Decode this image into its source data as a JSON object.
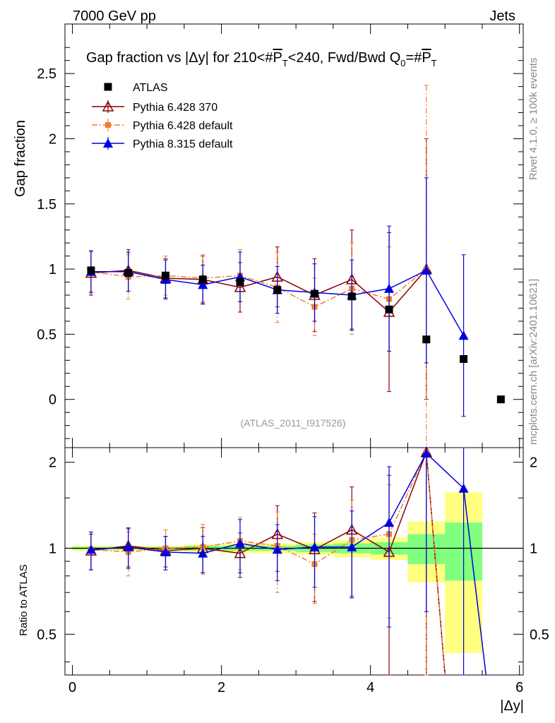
{
  "header": {
    "left": "7000 GeV pp",
    "right": "Jets",
    "title_pre": "Gap fraction vs |",
    "title_delta": "Δy| for 210<#",
    "title_pt1": "P",
    "title_t1": "T",
    "title_mid": "<240, Fwd/Bwd Q",
    "title_q0": "0",
    "title_eq": "=#",
    "title_pt2": "P",
    "title_t2": "T"
  },
  "side": {
    "rivet": "Rivet 4.1.0, ≥ 100k events",
    "mcplots": "mcplots.cern.ch [arXiv:2401.10621]"
  },
  "watermark": "(ATLAS_2011_I917526)",
  "colors": {
    "atlas": "#000000",
    "py6_370": "#8b0000",
    "py6_def": "#ef7d35",
    "py8_def": "#0000dd",
    "band_inner": "#80ff80",
    "band_outer": "#ffff80"
  },
  "chart_data": [
    {
      "type": "scatter",
      "title": "Gap fraction vs |Δy| for 210<#PT<240, Fwd/Bwd Q0=#PT",
      "xlabel": "|Δy|",
      "ylabel": "Gap fraction",
      "xlim": [
        -0.1,
        6.05
      ],
      "ylim": [
        -0.37,
        2.88
      ],
      "yticks": [
        0,
        0.5,
        1,
        1.5,
        2,
        2.5
      ],
      "ytick_labels": [
        "0",
        "0.5",
        "1",
        "1.5",
        "2",
        "2.5"
      ],
      "legend_position": "top-left",
      "series": [
        {
          "name": "ATLAS",
          "key": "atlas",
          "marker": "square",
          "line": "none",
          "x": [
            0.25,
            0.75,
            1.25,
            1.75,
            2.25,
            2.75,
            3.25,
            3.75,
            4.25,
            4.75,
            5.25,
            5.75
          ],
          "y": [
            0.99,
            0.97,
            0.95,
            0.92,
            0.9,
            0.84,
            0.81,
            0.79,
            0.69,
            0.46,
            0.31,
            0.0
          ],
          "err": [
            0,
            0,
            0,
            0,
            0,
            0,
            0,
            0,
            0,
            0,
            0,
            0
          ]
        },
        {
          "name": "Pythia 6.428 370",
          "key": "py6_370",
          "marker": "open-triangle",
          "line": "solid",
          "x": [
            0.25,
            0.75,
            1.25,
            1.75,
            2.25,
            2.75,
            3.25,
            3.75,
            4.25,
            4.75
          ],
          "y": [
            0.97,
            0.99,
            0.93,
            0.92,
            0.86,
            0.94,
            0.8,
            0.92,
            0.67,
            1.0
          ],
          "err": [
            0.17,
            0.16,
            0.15,
            0.18,
            0.19,
            0.23,
            0.28,
            0.38,
            0.61,
            1.0
          ]
        },
        {
          "name": "Pythia 6.428 default",
          "key": "py6_def",
          "marker": "square",
          "line": "dashdot",
          "x": [
            0.25,
            0.75,
            1.25,
            1.75,
            2.25,
            2.75,
            3.25,
            3.75,
            4.25,
            4.75
          ],
          "y": [
            0.98,
            0.94,
            0.95,
            0.93,
            0.95,
            0.86,
            0.71,
            0.85,
            0.77,
            1.0
          ],
          "err": [
            0.15,
            0.17,
            0.15,
            0.18,
            0.2,
            0.27,
            0.22,
            0.35,
            0.4,
            1.41
          ]
        },
        {
          "name": "Pythia 8.315 default",
          "key": "py8_def",
          "marker": "filled-triangle",
          "line": "solid",
          "x": [
            0.25,
            0.75,
            1.25,
            1.75,
            2.25,
            2.75,
            3.25,
            3.75,
            4.25,
            4.75,
            5.25
          ],
          "y": [
            0.98,
            0.98,
            0.92,
            0.88,
            0.94,
            0.84,
            0.82,
            0.8,
            0.85,
            0.99,
            0.49
          ],
          "err": [
            0.16,
            0.15,
            0.15,
            0.15,
            0.19,
            0.18,
            0.22,
            0.27,
            0.48,
            0.71,
            0.62
          ]
        }
      ]
    },
    {
      "type": "scatter",
      "title": "",
      "xlabel": "|Δy|",
      "ylabel": "Ratio to ATLAS",
      "xlim": [
        -0.1,
        6.05
      ],
      "ylim": [
        0.36,
        2.25
      ],
      "yticks": [
        0.5,
        1,
        2
      ],
      "ytick_labels": [
        "0.5",
        "1",
        "2"
      ],
      "xticks": [
        0,
        2,
        4,
        6
      ],
      "xtick_labels": [
        "0",
        "2",
        "4",
        "6"
      ],
      "reference": 1,
      "bands": {
        "x_edges": [
          0,
          0.5,
          1,
          1.5,
          2,
          2.5,
          3,
          3.5,
          4,
          4.5,
          5,
          5.5
        ],
        "inner_lo": [
          0.99,
          0.99,
          0.99,
          0.98,
          0.98,
          0.98,
          0.97,
          0.96,
          0.95,
          0.88,
          0.77
        ],
        "inner_hi": [
          1.01,
          1.01,
          1.01,
          1.02,
          1.02,
          1.02,
          1.03,
          1.04,
          1.05,
          1.12,
          1.23
        ],
        "outer_lo": [
          0.98,
          0.98,
          0.98,
          0.97,
          0.96,
          0.96,
          0.95,
          0.93,
          0.91,
          0.76,
          0.43
        ],
        "outer_hi": [
          1.02,
          1.02,
          1.02,
          1.03,
          1.04,
          1.04,
          1.05,
          1.07,
          1.09,
          1.24,
          1.57
        ]
      },
      "series": [
        {
          "name": "Pythia 6.428 370",
          "key": "py6_370",
          "x": [
            0.25,
            0.75,
            1.25,
            1.75,
            2.25,
            2.75,
            3.25,
            3.75,
            4.25,
            4.75,
            5.0
          ],
          "y": [
            0.98,
            1.02,
            0.98,
            1.0,
            0.96,
            1.12,
            0.99,
            1.16,
            0.97,
            2.17,
            0.36
          ],
          "err": [
            0.14,
            0.16,
            0.12,
            0.18,
            0.17,
            0.29,
            0.34,
            0.48,
            0.83,
            2.2,
            0
          ],
          "markers": 10
        },
        {
          "name": "Pythia 6.428 default",
          "key": "py6_def",
          "x": [
            0.25,
            0.75,
            1.25,
            1.75,
            2.25,
            2.75,
            3.25,
            3.75,
            4.25,
            4.75,
            5.0
          ],
          "y": [
            0.99,
            0.97,
            1.0,
            1.01,
            1.06,
            1.02,
            0.88,
            1.07,
            1.12,
            2.17,
            0.36
          ],
          "err": [
            0.15,
            0.17,
            0.16,
            0.2,
            0.22,
            0.32,
            0.24,
            0.4,
            0.55,
            3.0,
            0
          ],
          "markers": 10
        },
        {
          "name": "Pythia 8.315 default",
          "key": "py8_def",
          "x": [
            0.25,
            0.75,
            1.25,
            1.75,
            2.25,
            2.75,
            3.25,
            3.75,
            4.25,
            4.75,
            5.25,
            5.55
          ],
          "y": [
            0.99,
            1.01,
            0.97,
            0.96,
            1.04,
            0.99,
            1.01,
            1.01,
            1.23,
            2.15,
            1.62,
            0.36
          ],
          "err": [
            0.15,
            0.16,
            0.13,
            0.14,
            0.22,
            0.22,
            0.28,
            0.34,
            0.7,
            1.55,
            2.0,
            0
          ],
          "markers": 11
        }
      ]
    }
  ]
}
